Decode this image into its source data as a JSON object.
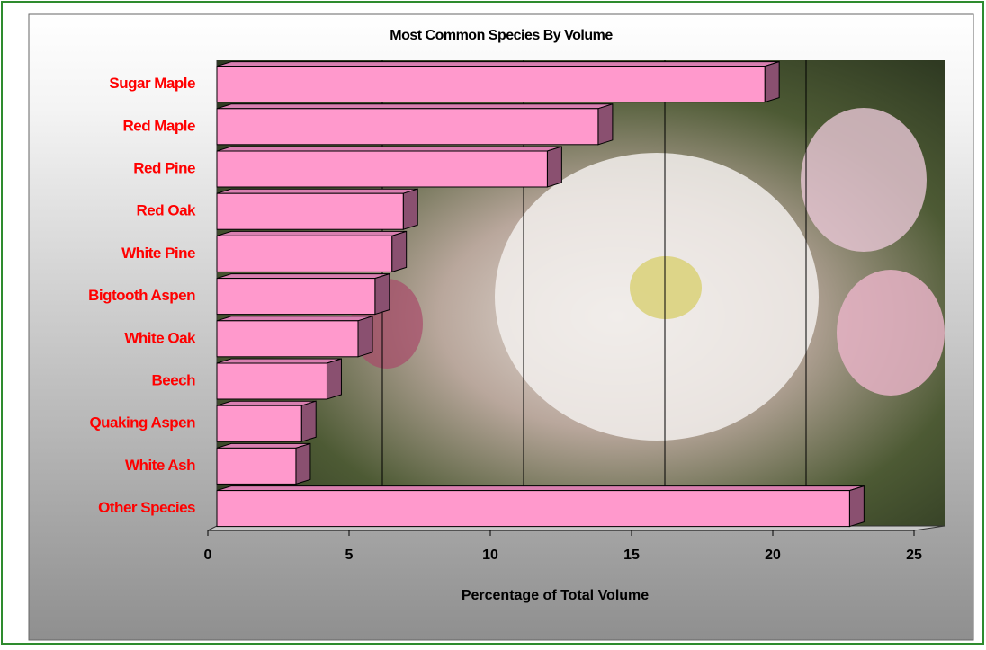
{
  "chart_data": {
    "type": "bar",
    "orientation": "horizontal",
    "title": "Most Common Species By Volume",
    "x_label": "Percentage of Total Volume",
    "categories": [
      "Sugar Maple",
      "Red Maple",
      "Red Pine",
      "Red Oak",
      "White Pine",
      "Bigtooth Aspen",
      "White Oak",
      "Beech",
      "Quaking Aspen",
      "White Ash",
      "Other Species"
    ],
    "values": [
      19.4,
      13.5,
      11.7,
      6.6,
      6.2,
      5.6,
      5.0,
      3.9,
      3.0,
      2.8,
      22.4
    ],
    "color": "#ff99cc",
    "xlim": [
      0,
      25
    ],
    "xticks": [
      0,
      5,
      10,
      15,
      20,
      25
    ],
    "grid": true
  }
}
